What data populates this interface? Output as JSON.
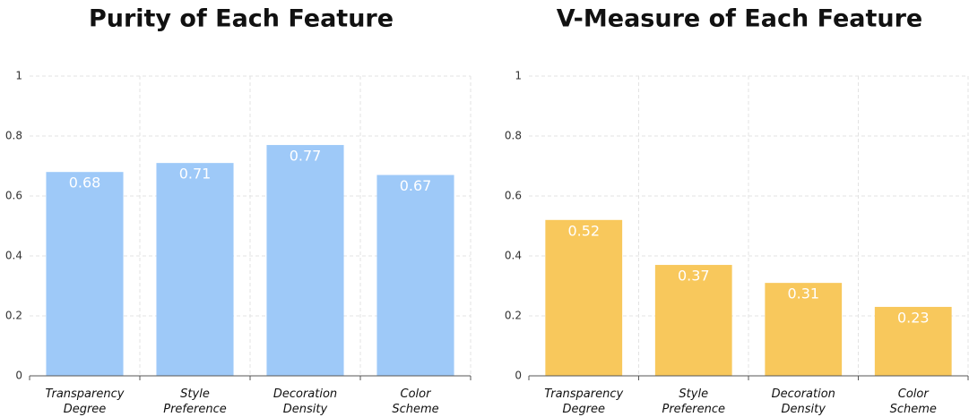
{
  "chart_data": [
    {
      "type": "bar",
      "title": "Purity of Each Feature",
      "categories": [
        "Transparency Degree",
        "Style Preference",
        "Decoration Density",
        "Color Scheme"
      ],
      "values": [
        0.68,
        0.71,
        0.77,
        0.67
      ],
      "color": "#9ec9f8",
      "ylim": [
        0,
        1
      ],
      "yticks": [
        0,
        0.2,
        0.4,
        0.6,
        0.8,
        1
      ],
      "grid": true
    },
    {
      "type": "bar",
      "title": "V-Measure of Each Feature",
      "categories": [
        "Transparency Degree",
        "Style Preference",
        "Decoration Density",
        "Color Scheme"
      ],
      "values": [
        0.52,
        0.37,
        0.31,
        0.23
      ],
      "color": "#f8c85c",
      "ylim": [
        0,
        1
      ],
      "yticks": [
        0,
        0.2,
        0.4,
        0.6,
        0.8,
        1
      ],
      "grid": true
    }
  ]
}
